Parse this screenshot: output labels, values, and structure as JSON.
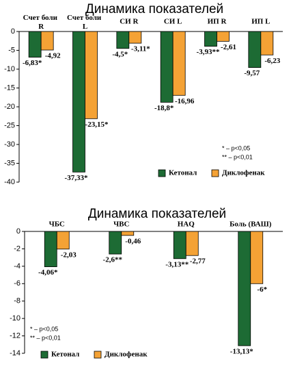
{
  "chart_data": [
    {
      "type": "bar",
      "title": "Динамика показателей",
      "categories": [
        "Счет боли R",
        "Счет боли L",
        "СИ R",
        "СИ L",
        "ИП R",
        "ИП L"
      ],
      "series": [
        {
          "name": "Кетонал",
          "color": "#1d6b34",
          "values": [
            -6.83,
            -37.33,
            -4.5,
            -18.8,
            -3.93,
            -9.57
          ],
          "value_labels": [
            "-6,83*",
            "-37,33*",
            "-4,5*",
            "-18,8*",
            "-3,93**",
            "-9,57"
          ]
        },
        {
          "name": "Диклофенак",
          "color": "#f4a235",
          "values": [
            -4.92,
            -23.15,
            -3.11,
            -16.96,
            -2.61,
            -6.23
          ],
          "value_labels": [
            "-4,92",
            "-23,15*",
            "-3,11*",
            "-16,96",
            "-2,61",
            "-6,23"
          ]
        }
      ],
      "ylim": [
        -40,
        0
      ],
      "yticks": [
        0,
        -5,
        -10,
        -15,
        -20,
        -25,
        -30,
        -35,
        -40
      ],
      "notes": [
        "* – p<0,05",
        "** – p<0,01"
      ],
      "legend": "lower right"
    },
    {
      "type": "bar",
      "title": "Динамика показателей",
      "categories": [
        "ЧБС",
        "ЧВС",
        "HAQ",
        "Боль (ВАШ)"
      ],
      "series": [
        {
          "name": "Кетонал",
          "color": "#1d6b34",
          "values": [
            -4.06,
            -2.6,
            -3.13,
            -13.13
          ],
          "value_labels": [
            "-4,06*",
            "-2,6**",
            "-3,13**",
            "-13,13*"
          ]
        },
        {
          "name": "Диклофенак",
          "color": "#f4a235",
          "values": [
            -2.03,
            -0.46,
            -2.77,
            -6
          ],
          "value_labels": [
            "-2,03",
            "-0,46",
            "-2,77",
            "-6*"
          ]
        }
      ],
      "ylim": [
        -14,
        0
      ],
      "yticks": [
        0,
        -2,
        -4,
        -6,
        -8,
        -10,
        -12,
        -14
      ],
      "notes": [
        "* – p<0,05",
        "** – p<0,01"
      ],
      "legend": "lower center"
    }
  ]
}
